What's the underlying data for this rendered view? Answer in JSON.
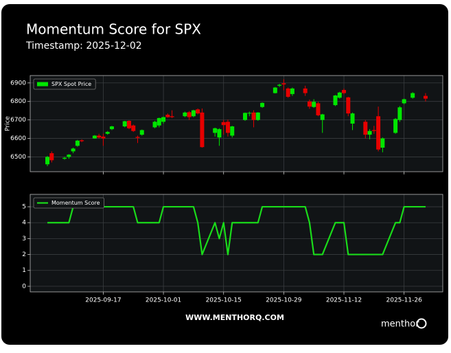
{
  "title": "Momentum Score for SPX",
  "subtitle": "Timestamp: 2025-12-02",
  "footer": "WWW.MENTHORQ.COM",
  "logo": {
    "text": "menthor",
    "mark": "Q"
  },
  "chart_data": [
    {
      "type": "candlestick",
      "y_label": "Price",
      "x": [
        "2025-09-04",
        "2025-09-05",
        "2025-09-08",
        "2025-09-09",
        "2025-09-10",
        "2025-09-11",
        "2025-09-12",
        "2025-09-15",
        "2025-09-16",
        "2025-09-17",
        "2025-09-18",
        "2025-09-19",
        "2025-09-22",
        "2025-09-23",
        "2025-09-24",
        "2025-09-25",
        "2025-09-26",
        "2025-09-29",
        "2025-09-30",
        "2025-10-01",
        "2025-10-02",
        "2025-10-03",
        "2025-10-06",
        "2025-10-07",
        "2025-10-08",
        "2025-10-09",
        "2025-10-10",
        "2025-10-13",
        "2025-10-14",
        "2025-10-15",
        "2025-10-16",
        "2025-10-17",
        "2025-10-20",
        "2025-10-21",
        "2025-10-22",
        "2025-10-23",
        "2025-10-24",
        "2025-10-27",
        "2025-10-28",
        "2025-10-29",
        "2025-10-30",
        "2025-10-31",
        "2025-11-03",
        "2025-11-04",
        "2025-11-05",
        "2025-11-06",
        "2025-11-07",
        "2025-11-10",
        "2025-11-11",
        "2025-11-12",
        "2025-11-13",
        "2025-11-14",
        "2025-11-17",
        "2025-11-18",
        "2025-11-19",
        "2025-11-20",
        "2025-11-21",
        "2025-11-24",
        "2025-11-25",
        "2025-11-26",
        "2025-11-28",
        "2025-12-01"
      ],
      "series": [
        {
          "name": "SPX Spot Price",
          "color": "#00e600",
          "down_color": "#e60000",
          "open": [
            6460,
            6520,
            6490,
            6500,
            6530,
            6560,
            6590,
            6600,
            6615,
            6610,
            6625,
            6650,
            6665,
            6695,
            6670,
            6608,
            6620,
            6660,
            6670,
            6690,
            6728,
            6720,
            6720,
            6742,
            6720,
            6757,
            6740,
            6630,
            6605,
            6688,
            6690,
            6615,
            6700,
            6735,
            6740,
            6700,
            6770,
            6845,
            6885,
            6898,
            6870,
            6840,
            6870,
            6800,
            6770,
            6790,
            6700,
            6780,
            6820,
            6862,
            6822,
            6680,
            6690,
            6620,
            6645,
            6720,
            6550,
            6630,
            6700,
            6790,
            6820,
            6830
          ],
          "high": [
            6505,
            6530,
            6500,
            6515,
            6550,
            6592,
            6595,
            6618,
            6625,
            6625,
            6640,
            6668,
            6695,
            6698,
            6675,
            6615,
            6648,
            6695,
            6712,
            6718,
            6735,
            6752,
            6745,
            6748,
            6755,
            6762,
            6762,
            6658,
            6655,
            6700,
            6702,
            6668,
            6740,
            6745,
            6752,
            6742,
            6795,
            6878,
            6895,
            6920,
            6875,
            6875,
            6885,
            6810,
            6812,
            6798,
            6733,
            6835,
            6852,
            6870,
            6825,
            6740,
            6700,
            6650,
            6668,
            6772,
            6605,
            6710,
            6775,
            6815,
            6850,
            6845
          ],
          "low": [
            6450,
            6470,
            6485,
            6490,
            6520,
            6555,
            6580,
            6598,
            6600,
            6560,
            6620,
            6645,
            6660,
            6650,
            6635,
            6575,
            6615,
            6655,
            6660,
            6680,
            6712,
            6710,
            6715,
            6700,
            6715,
            6730,
            6550,
            6610,
            6560,
            6620,
            6610,
            6605,
            6695,
            6720,
            6660,
            6695,
            6765,
            6843,
            6878,
            6860,
            6820,
            6830,
            6830,
            6760,
            6765,
            6720,
            6630,
            6775,
            6815,
            6838,
            6720,
            6645,
            6600,
            6595,
            6625,
            6530,
            6525,
            6625,
            6690,
            6785,
            6815,
            6800
          ],
          "close": [
            6500,
            6482,
            6495,
            6512,
            6545,
            6588,
            6585,
            6615,
            6605,
            6600,
            6635,
            6665,
            6693,
            6655,
            6640,
            6603,
            6645,
            6690,
            6710,
            6715,
            6715,
            6715,
            6740,
            6715,
            6752,
            6735,
            6553,
            6655,
            6650,
            6672,
            6630,
            6665,
            6738,
            6738,
            6700,
            6740,
            6792,
            6875,
            6890,
            6892,
            6825,
            6870,
            6845,
            6772,
            6798,
            6725,
            6730,
            6832,
            6848,
            6845,
            6735,
            6735,
            6620,
            6640,
            6640,
            6540,
            6600,
            6705,
            6768,
            6812,
            6845,
            6815
          ]
        }
      ],
      "xlim": [
        "2025-08-31",
        "2025-12-05"
      ],
      "xticks": [
        "2025-09-17",
        "2025-10-01",
        "2025-10-15",
        "2025-10-29",
        "2025-11-12",
        "2025-11-26"
      ],
      "show_xtick_labels": false,
      "ylim": [
        6420,
        6940
      ],
      "yticks": [
        6500,
        6600,
        6700,
        6800,
        6900
      ],
      "grid": true,
      "legend": "upper-left"
    },
    {
      "type": "line",
      "x": [
        "2025-09-04",
        "2025-09-05",
        "2025-09-08",
        "2025-09-09",
        "2025-09-10",
        "2025-09-11",
        "2025-09-12",
        "2025-09-15",
        "2025-09-16",
        "2025-09-17",
        "2025-09-18",
        "2025-09-19",
        "2025-09-22",
        "2025-09-23",
        "2025-09-24",
        "2025-09-25",
        "2025-09-26",
        "2025-09-29",
        "2025-09-30",
        "2025-10-01",
        "2025-10-02",
        "2025-10-03",
        "2025-10-06",
        "2025-10-07",
        "2025-10-08",
        "2025-10-09",
        "2025-10-10",
        "2025-10-13",
        "2025-10-14",
        "2025-10-15",
        "2025-10-16",
        "2025-10-17",
        "2025-10-20",
        "2025-10-21",
        "2025-10-22",
        "2025-10-23",
        "2025-10-24",
        "2025-10-27",
        "2025-10-28",
        "2025-10-29",
        "2025-10-30",
        "2025-10-31",
        "2025-11-03",
        "2025-11-04",
        "2025-11-05",
        "2025-11-06",
        "2025-11-07",
        "2025-11-10",
        "2025-11-11",
        "2025-11-12",
        "2025-11-13",
        "2025-11-14",
        "2025-11-17",
        "2025-11-18",
        "2025-11-19",
        "2025-11-20",
        "2025-11-21",
        "2025-11-24",
        "2025-11-25",
        "2025-11-26",
        "2025-11-28",
        "2025-12-01"
      ],
      "series": [
        {
          "name": "Momentum Score",
          "color": "#1adb1a",
          "values": [
            4,
            4,
            4,
            4,
            5,
            5,
            5,
            5,
            5,
            5,
            5,
            5,
            5,
            5,
            5,
            4,
            4,
            4,
            4,
            5,
            5,
            5,
            5,
            5,
            5,
            4,
            2,
            4,
            3,
            4,
            2,
            4,
            4,
            4,
            4,
            4,
            5,
            5,
            5,
            5,
            5,
            5,
            5,
            4,
            2,
            2,
            2,
            4,
            4,
            4,
            2,
            2,
            2,
            2,
            2,
            2,
            2,
            4,
            4,
            5,
            5,
            5
          ]
        }
      ],
      "xlim": [
        "2025-08-31",
        "2025-12-05"
      ],
      "xticks": [
        "2025-09-17",
        "2025-10-01",
        "2025-10-15",
        "2025-10-29",
        "2025-11-12",
        "2025-11-26"
      ],
      "show_xtick_labels": true,
      "ylim": [
        -0.35,
        5.78
      ],
      "yticks": [
        0,
        1,
        2,
        3,
        4,
        5
      ],
      "grid": true,
      "legend": "upper-left"
    }
  ]
}
